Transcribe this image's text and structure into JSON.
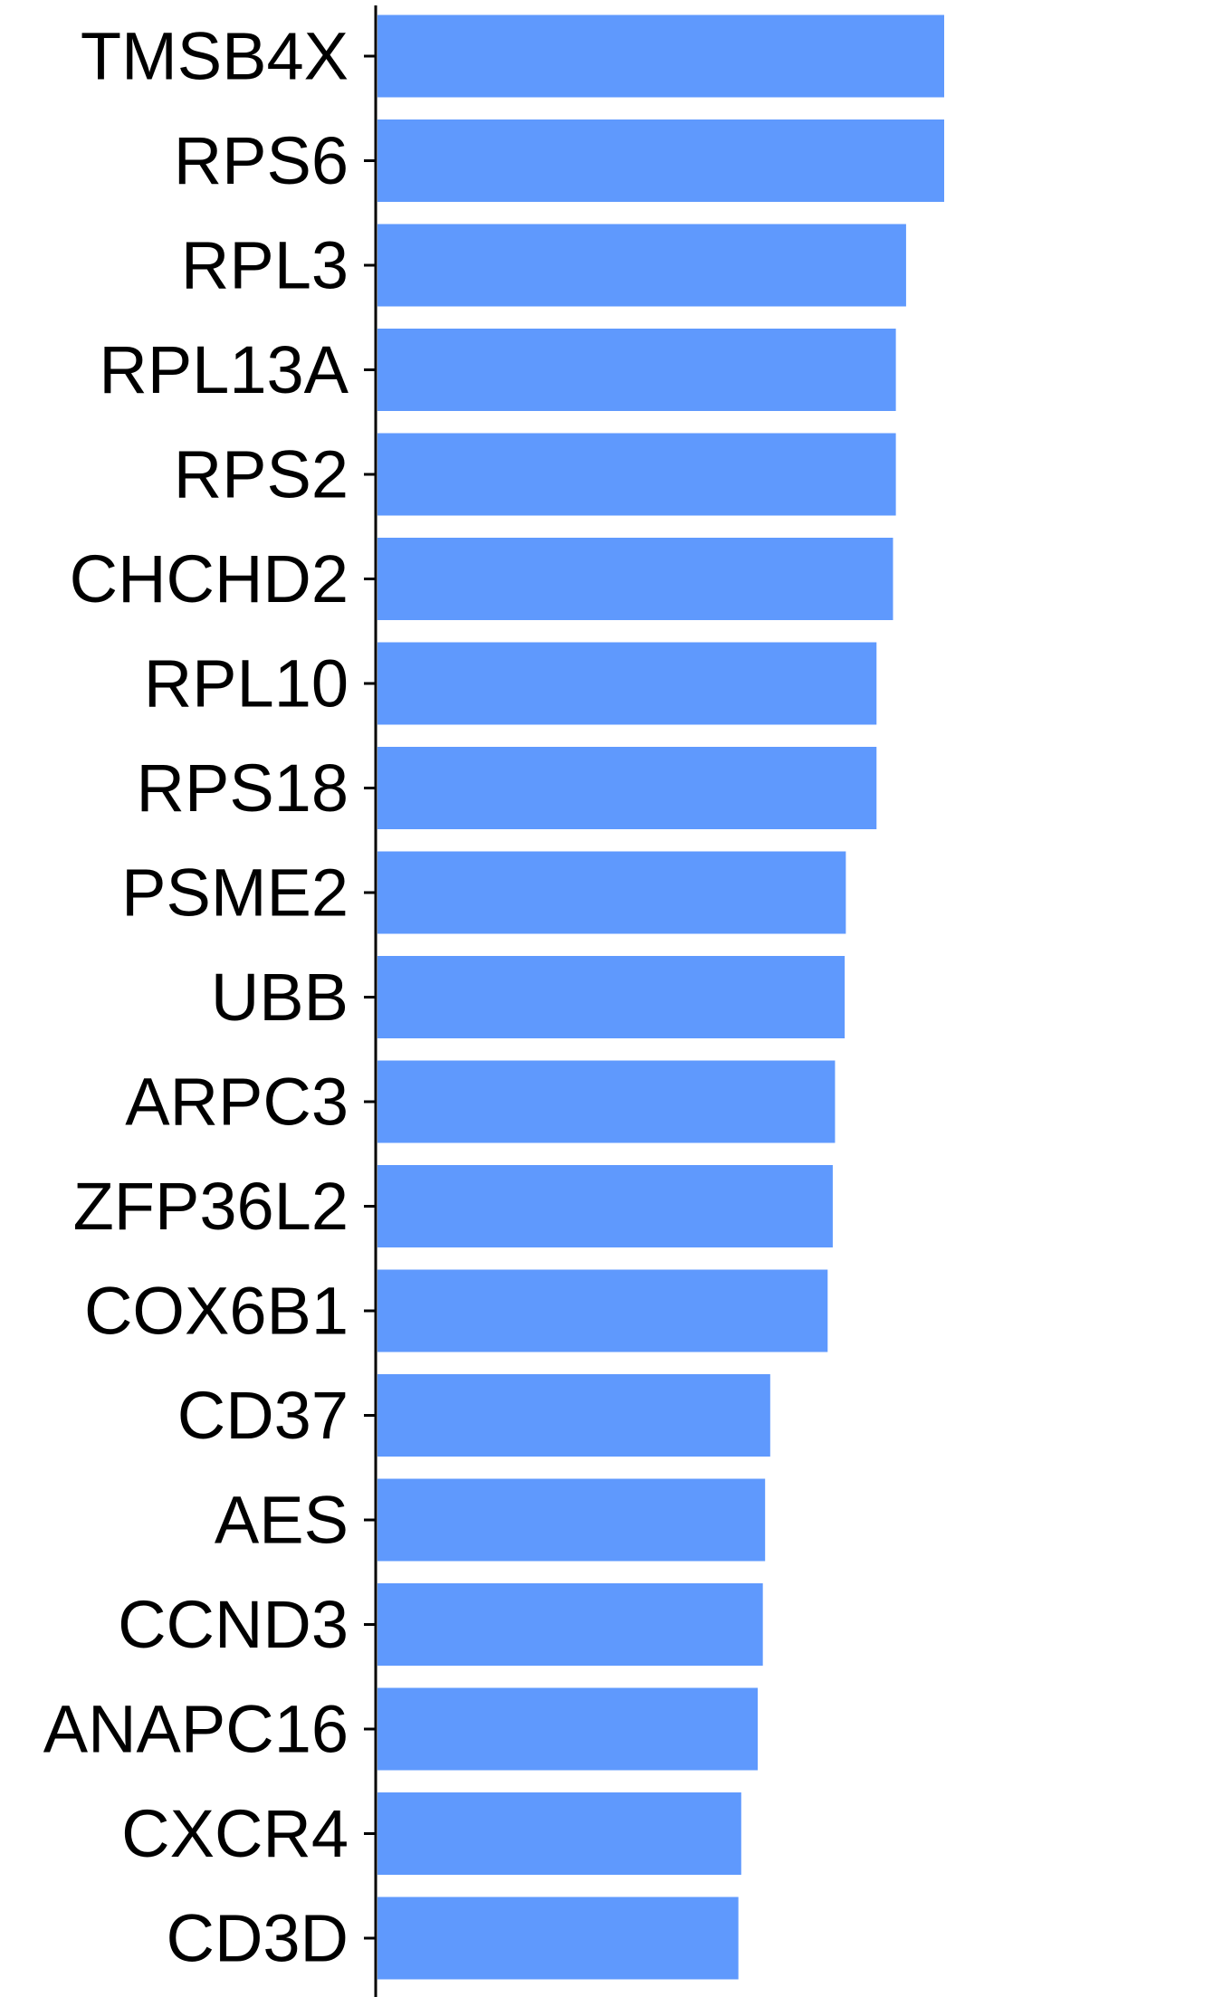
{
  "chart_data": {
    "type": "bar",
    "orientation": "horizontal",
    "title": "",
    "xlabel": "",
    "ylabel": "",
    "categories": [
      "TMSB4X",
      "RPS6",
      "RPL3",
      "RPL13A",
      "RPS2",
      "CHCHD2",
      "RPL10",
      "RPS18",
      "PSME2",
      "UBB",
      "ARPC3",
      "ZFP36L2",
      "COX6B1",
      "CD37",
      "AES",
      "CCND3",
      "ANAPC16",
      "CXCR4",
      "CD3D"
    ],
    "values": [
      100,
      100,
      93.3,
      91.5,
      91.5,
      91.0,
      88.1,
      88.1,
      82.7,
      82.5,
      80.8,
      80.4,
      79.5,
      69.4,
      68.5,
      68.1,
      67.2,
      64.3,
      63.8
    ],
    "xlim": [
      0,
      150
    ],
    "grid": false,
    "legend": "none",
    "colors": {
      "bar": "#5F99FD",
      "axis": "#000000",
      "text": "#000000"
    }
  }
}
